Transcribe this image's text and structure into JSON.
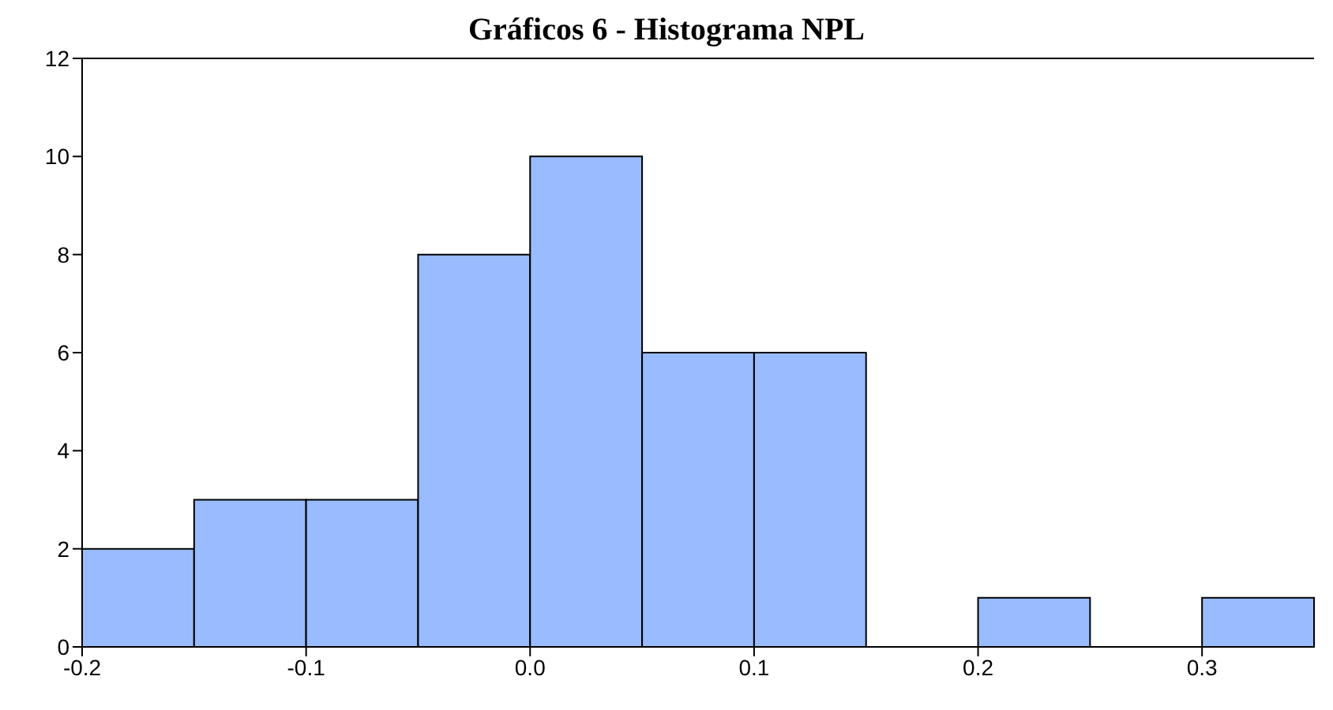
{
  "chart_data": {
    "type": "histogram",
    "title": "Gráficos 6 - Histograma NPL",
    "bins": [
      -0.2,
      -0.15,
      -0.1,
      -0.05,
      0,
      0.05,
      0.1,
      0.15,
      0.2,
      0.25,
      0.3,
      0.35
    ],
    "values": [
      2,
      3,
      3,
      8,
      10,
      6,
      6,
      0,
      1,
      0,
      1
    ],
    "color": "#99bbff",
    "xlim": [
      -0.2,
      0.35
    ],
    "xticks": [
      -0.2,
      -0.1,
      {
        "value": 0,
        "label": "0.0"
      },
      0.1,
      0.2,
      0.3
    ],
    "ylim": [
      0,
      12
    ],
    "yticks": [
      0,
      2,
      4,
      6,
      8,
      10,
      12
    ],
    "grid": false
  }
}
